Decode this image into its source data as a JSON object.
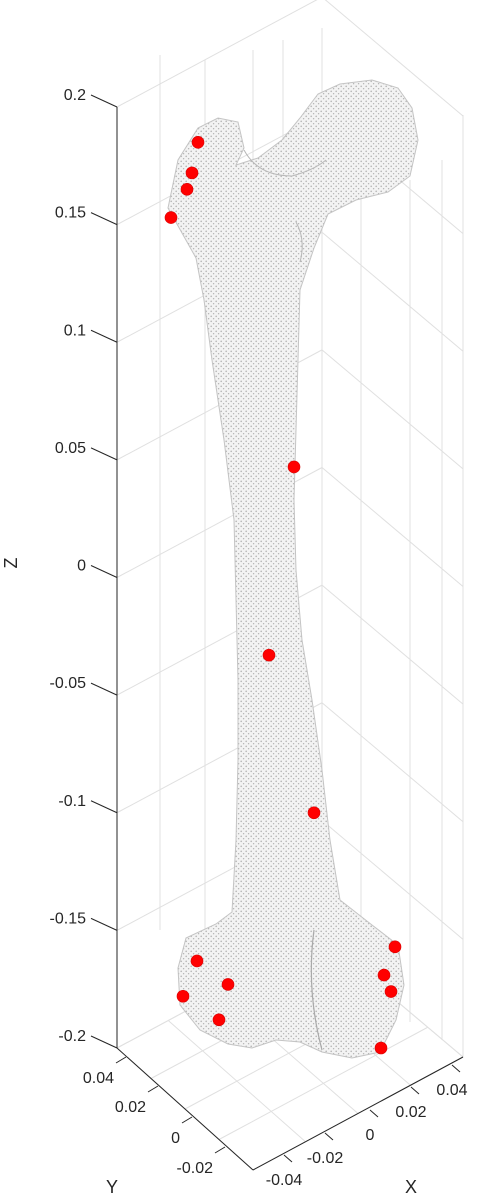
{
  "chart_data": {
    "type": "scatter",
    "title": "",
    "xlabel": "X",
    "ylabel": "Y",
    "zlabel": "Z",
    "xlim": [
      -0.04,
      0.05
    ],
    "ylim": [
      -0.03,
      0.05
    ],
    "zlim": [
      -0.2,
      0.2
    ],
    "x_ticks": [
      "-0.04",
      "-0.02",
      "0",
      "0.02",
      "0.04"
    ],
    "y_ticks": [
      "0.04",
      "0.02",
      "0",
      "-0.02"
    ],
    "z_ticks": [
      "0.2",
      "0.15",
      "0.1",
      "0.05",
      "0",
      "-0.05",
      "-0.1",
      "-0.15",
      "-0.2"
    ],
    "grid": true,
    "colors": {
      "surface_points": "#b4b4b4",
      "landmarks": "#ff0000",
      "grid": "#e0e0e0",
      "axis": "#262626"
    },
    "landmarks_z": [
      0.185,
      0.172,
      0.165,
      0.153,
      0.047,
      -0.033,
      -0.1,
      -0.163,
      -0.173,
      -0.178,
      -0.188,
      -0.2,
      -0.157,
      -0.169,
      -0.176,
      -0.188
    ],
    "surface": "bone point cloud (grey)"
  }
}
